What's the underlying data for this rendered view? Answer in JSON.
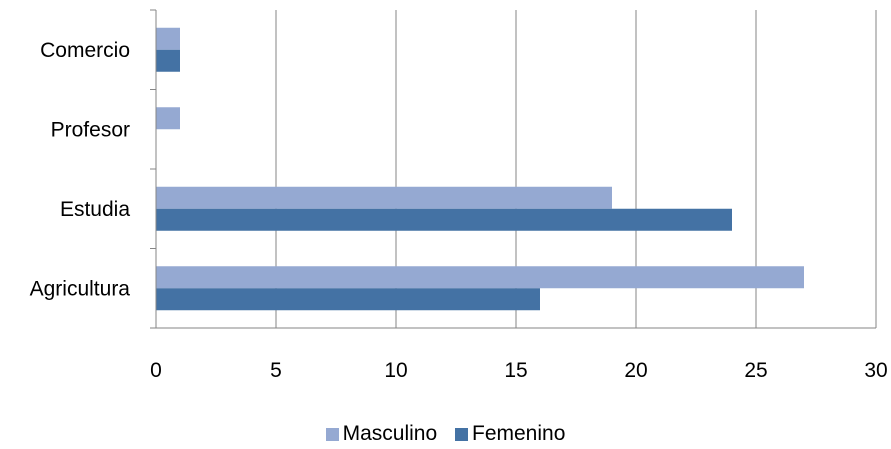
{
  "chart_data": {
    "type": "bar",
    "orientation": "horizontal",
    "categories": [
      "Agricultura",
      "Estudia",
      "Profesor",
      "Comercio"
    ],
    "series": [
      {
        "name": "Masculino",
        "values": [
          27,
          19,
          1,
          1
        ],
        "color": "#95a9d2"
      },
      {
        "name": "Femenino",
        "values": [
          16,
          24,
          0,
          1
        ],
        "color": "#4472a4"
      }
    ],
    "xlim": [
      0,
      30
    ],
    "x_ticks": [
      "0",
      "5",
      "10",
      "15",
      "20",
      "25",
      "30"
    ],
    "grid": "vertical",
    "legend_position": "bottom"
  }
}
